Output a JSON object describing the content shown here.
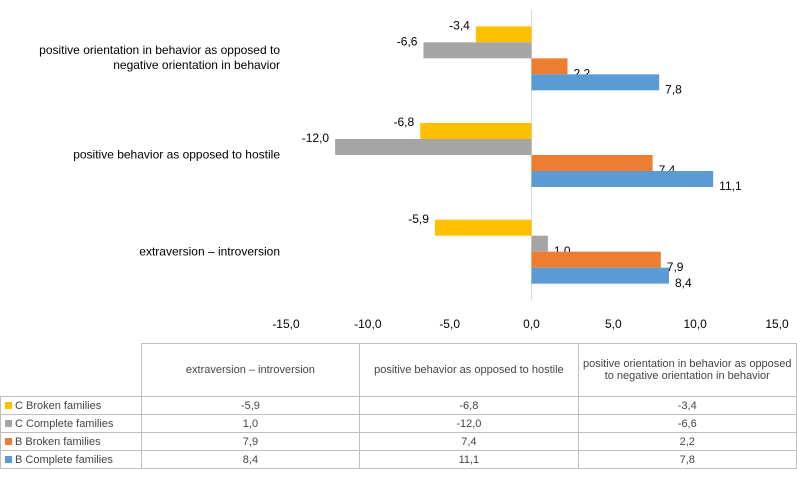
{
  "chart_data": {
    "type": "barh",
    "categories": [
      "extraversion – introversion",
      "positive behavior as opposed to hostile",
      "positive orientation in behavior as opposed to negative orientation in behavior"
    ],
    "series": [
      {
        "name": "C Broken families",
        "color": "#FFC000",
        "values": [
          -5.9,
          -6.8,
          -3.4
        ],
        "value_labels": [
          "-5,9",
          "-6,8",
          "-3,4"
        ]
      },
      {
        "name": "C Complete families",
        "color": "#A5A5A5",
        "values": [
          1.0,
          -12.0,
          -6.6
        ],
        "value_labels": [
          "1,0",
          "-12,0",
          "-6,6"
        ]
      },
      {
        "name": "B Broken families",
        "color": "#ED7D31",
        "values": [
          7.9,
          7.4,
          2.2
        ],
        "value_labels": [
          "7,9",
          "7,4",
          "2,2"
        ]
      },
      {
        "name": "B Complete families",
        "color": "#5B9BD5",
        "values": [
          8.4,
          11.1,
          7.8
        ],
        "value_labels": [
          "8,4",
          "11,1",
          "7,8"
        ]
      }
    ],
    "xlim": [
      -15,
      15
    ],
    "xticks": [
      {
        "value": -15,
        "label": "-15,0"
      },
      {
        "value": -10,
        "label": "-10,0"
      },
      {
        "value": -5,
        "label": "-5,0"
      },
      {
        "value": 0,
        "label": "0,0"
      },
      {
        "value": 5,
        "label": "5,0"
      },
      {
        "value": 10,
        "label": "10,0"
      },
      {
        "value": 15,
        "label": "15,0"
      }
    ],
    "grid": false
  }
}
